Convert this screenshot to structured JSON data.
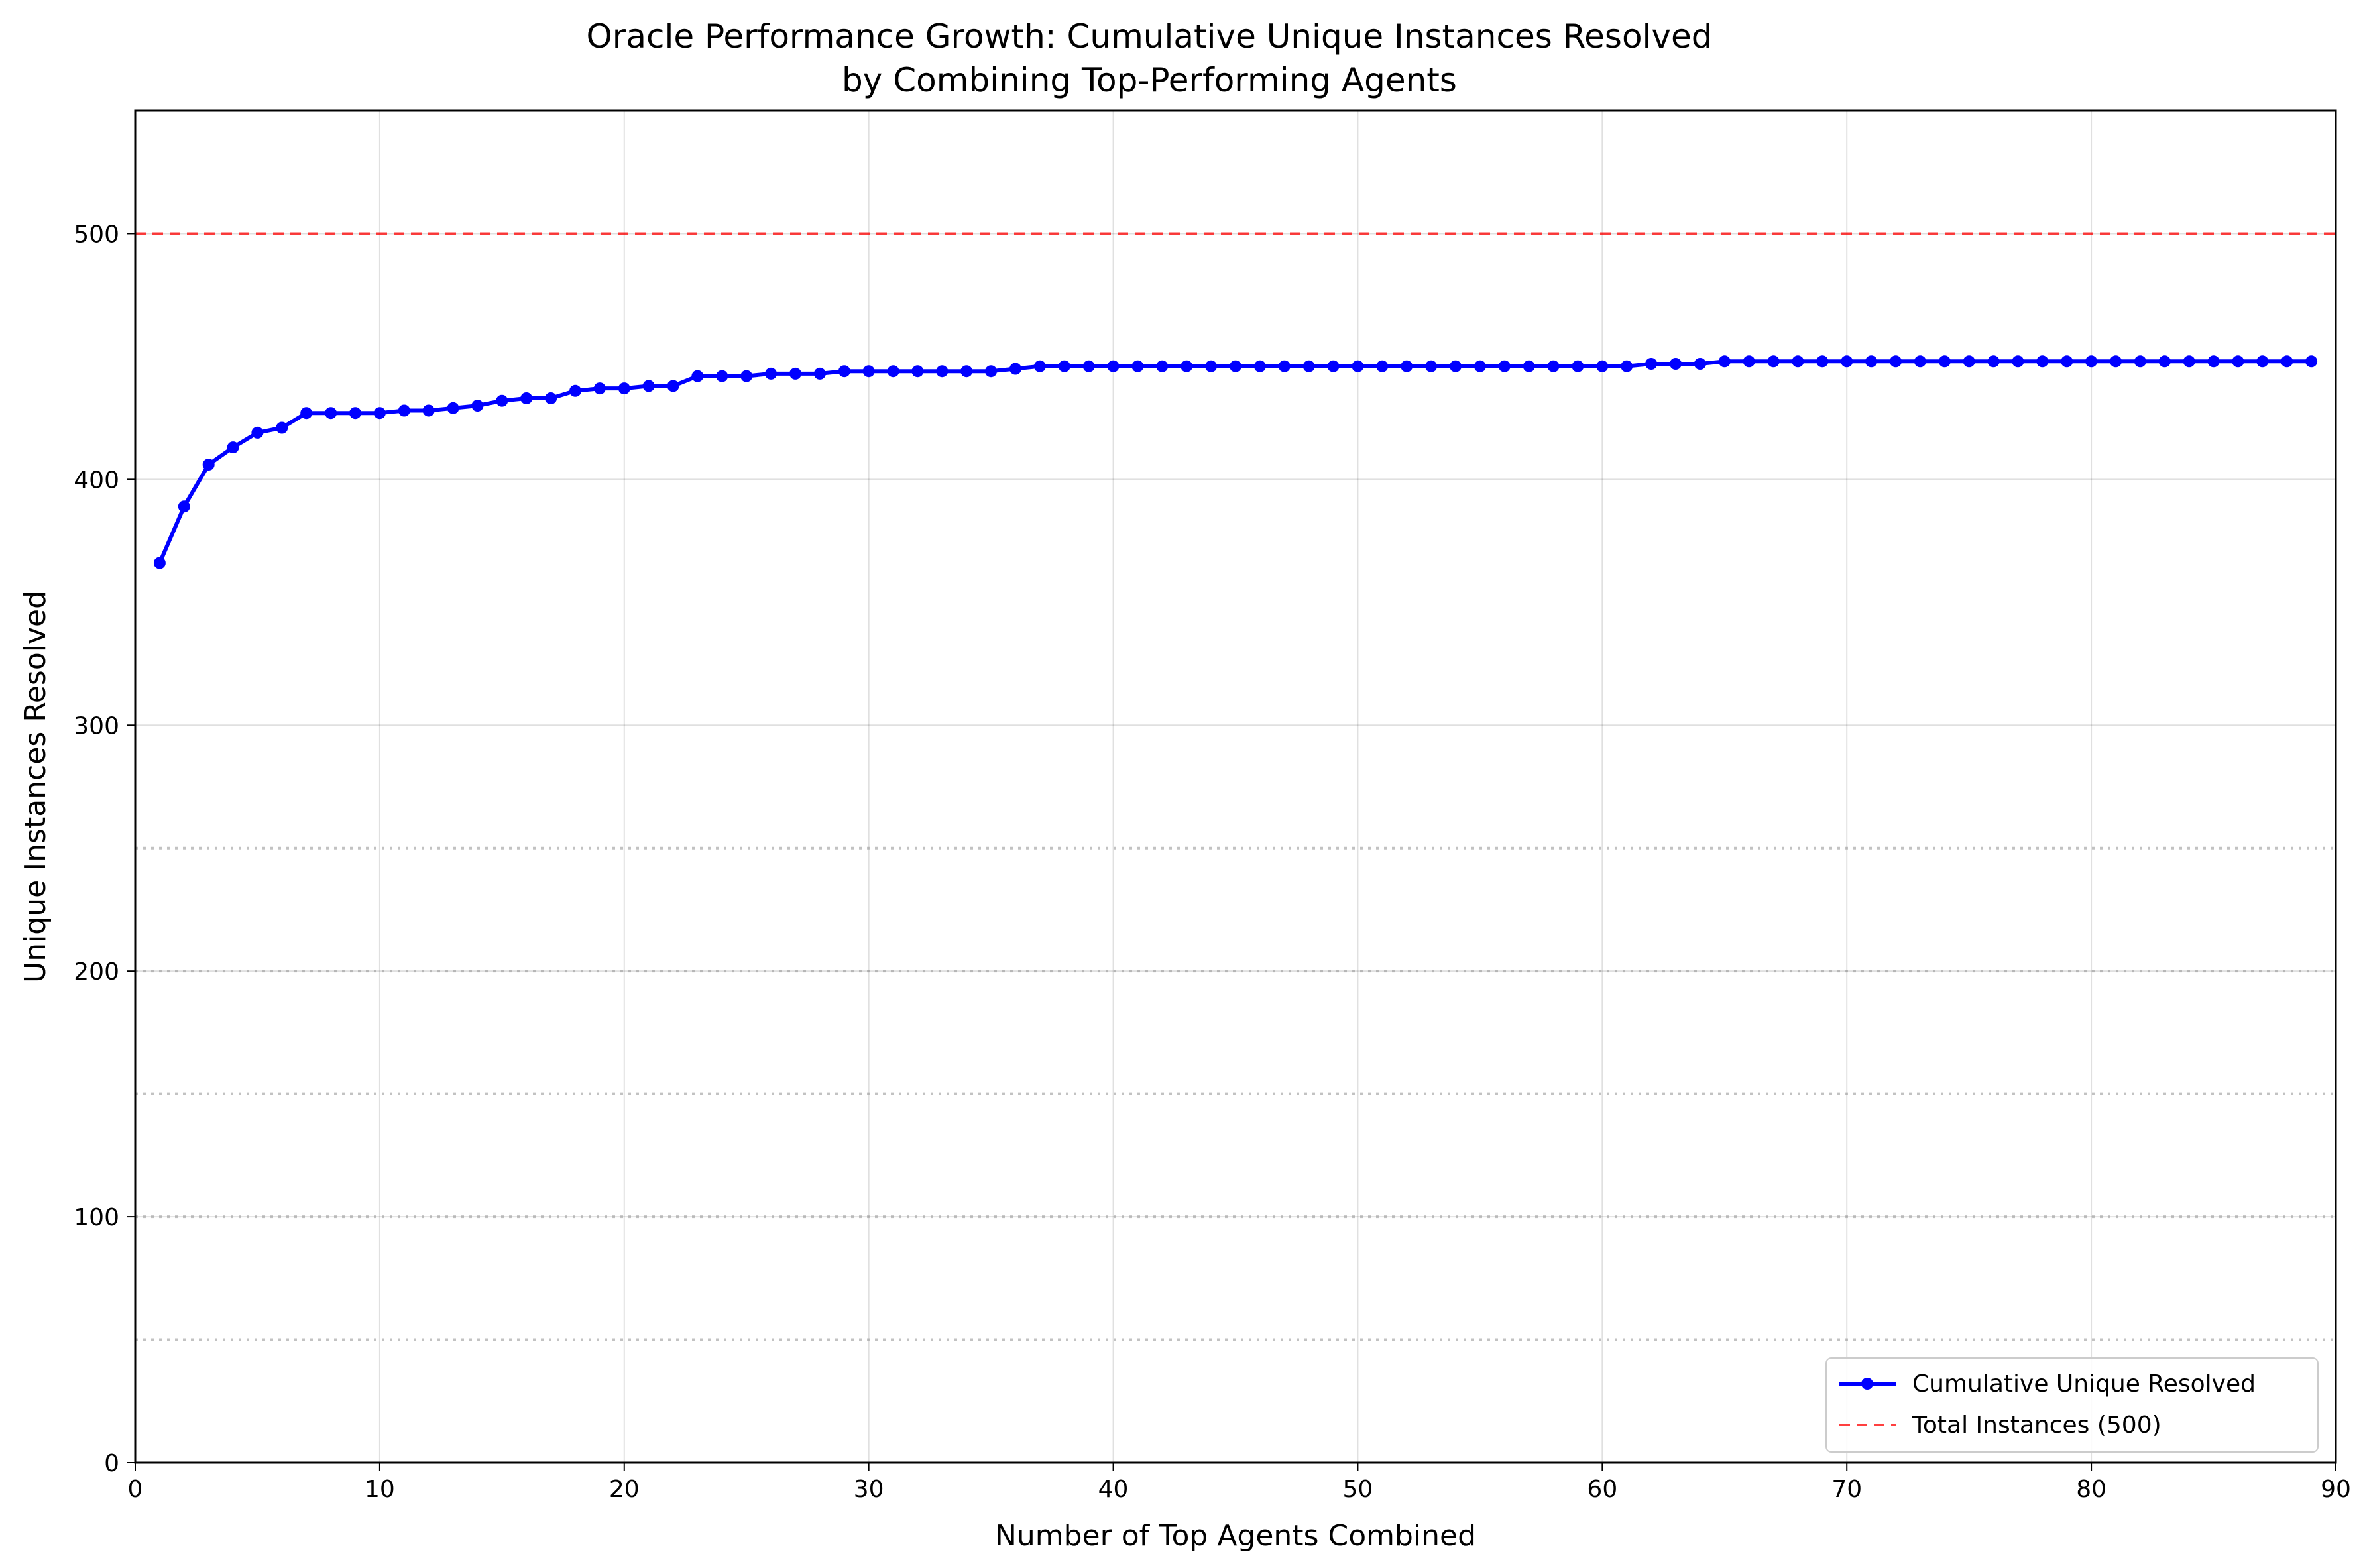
{
  "chart_data": {
    "type": "line",
    "title": [
      "Oracle Performance Growth: Cumulative Unique Instances Resolved",
      "by Combining Top-Performing Agents"
    ],
    "xlabel": "Number of Top Agents Combined",
    "ylabel": "Unique Instances Resolved",
    "xlim": [
      0,
      90
    ],
    "ylim": [
      0,
      550
    ],
    "xticks": [
      0,
      10,
      20,
      30,
      40,
      50,
      60,
      70,
      80,
      90
    ],
    "yticks": [
      0,
      100,
      200,
      300,
      400,
      500
    ],
    "dotted_reference_lines": [
      50,
      100,
      150,
      200,
      250
    ],
    "grid": true,
    "legend_position": "lower right",
    "series": [
      {
        "name": "Cumulative Unique Resolved",
        "color": "#0000ff",
        "style": "solid-with-markers",
        "x": [
          1,
          2,
          3,
          4,
          5,
          6,
          7,
          8,
          9,
          10,
          11,
          12,
          13,
          14,
          15,
          16,
          17,
          18,
          19,
          20,
          21,
          22,
          23,
          24,
          25,
          26,
          27,
          28,
          29,
          30,
          31,
          32,
          33,
          34,
          35,
          36,
          37,
          38,
          39,
          40,
          41,
          42,
          43,
          44,
          45,
          46,
          47,
          48,
          49,
          50,
          51,
          52,
          53,
          54,
          55,
          56,
          57,
          58,
          59,
          60,
          61,
          62,
          63,
          64,
          65,
          66,
          67,
          68,
          69,
          70,
          71,
          72,
          73,
          74,
          75,
          76,
          77,
          78,
          79,
          80,
          81,
          82,
          83,
          84,
          85,
          86,
          87,
          88,
          89
        ],
        "y": [
          366,
          389,
          406,
          413,
          419,
          421,
          427,
          427,
          427,
          427,
          428,
          428,
          429,
          430,
          432,
          433,
          433,
          436,
          437,
          437,
          438,
          438,
          442,
          442,
          442,
          443,
          443,
          443,
          444,
          444,
          444,
          444,
          444,
          444,
          444,
          445,
          446,
          446,
          446,
          446,
          446,
          446,
          446,
          446,
          446,
          446,
          446,
          446,
          446,
          446,
          446,
          446,
          446,
          446,
          446,
          446,
          446,
          446,
          446,
          446,
          446,
          447,
          447,
          447,
          448,
          448,
          448,
          448,
          448,
          448,
          448,
          448,
          448,
          448,
          448,
          448,
          448,
          448,
          448,
          448,
          448,
          448,
          448,
          448,
          448,
          448,
          448,
          448,
          448
        ]
      },
      {
        "name": "Total Instances (500)",
        "color": "#ff0000",
        "style": "dashed",
        "y_constant": 500
      }
    ]
  }
}
